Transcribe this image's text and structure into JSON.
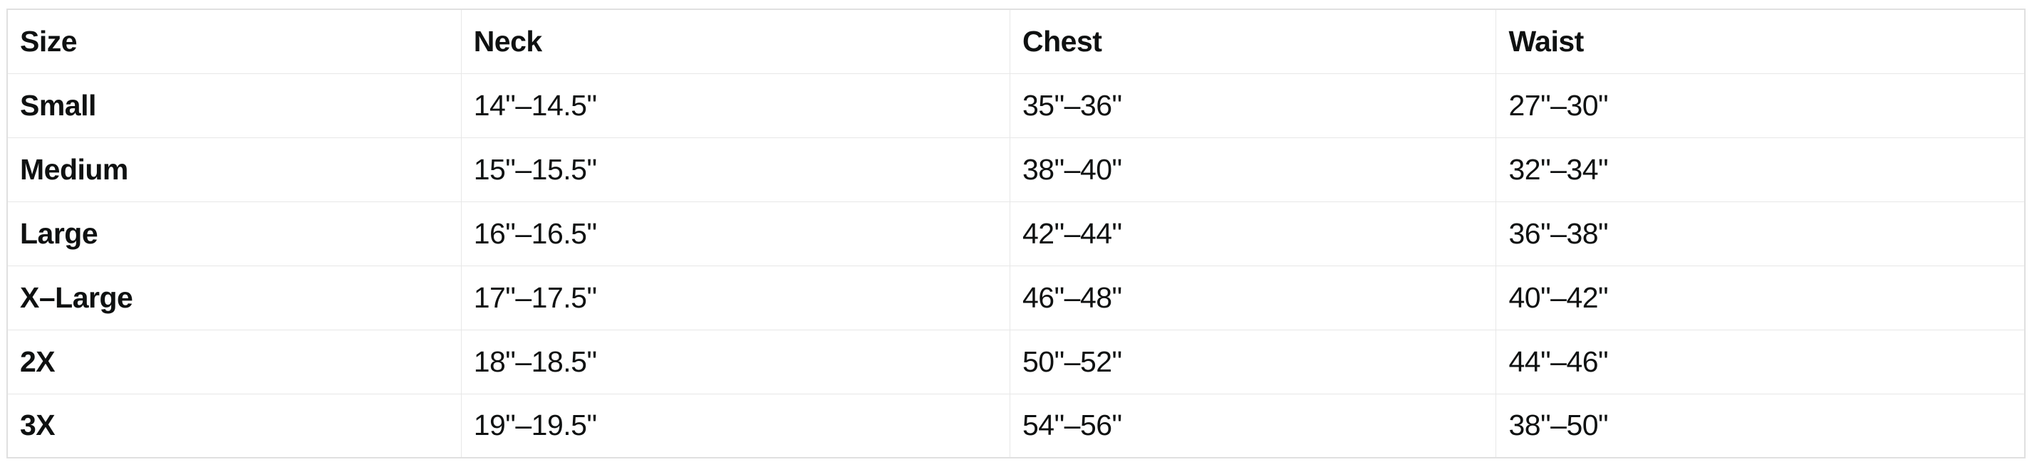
{
  "table": {
    "columns": [
      "Size",
      "Neck",
      "Chest",
      "Waist"
    ],
    "rows": [
      {
        "size": "Small",
        "neck": "14\"–14.5\"",
        "chest": "35\"–36\"",
        "waist": "27\"–30\""
      },
      {
        "size": "Medium",
        "neck": "15\"–15.5\"",
        "chest": "38\"–40\"",
        "waist": "32\"–34\""
      },
      {
        "size": "Large",
        "neck": "16\"–16.5\"",
        "chest": "42\"–44\"",
        "waist": "36\"–38\""
      },
      {
        "size": "X–Large",
        "neck": "17\"–17.5\"",
        "chest": "46\"–48\"",
        "waist": "40\"–42\""
      },
      {
        "size": "2X",
        "neck": "18\"–18.5\"",
        "chest": "50\"–52\"",
        "waist": "44\"–46\""
      },
      {
        "size": "3X",
        "neck": "19\"–19.5\"",
        "chest": "54\"–56\"",
        "waist": "38\"–50\""
      }
    ],
    "colors": {
      "text": "#0f1111",
      "border_outer": "#e0e0e0",
      "border_inner": "#e7e7e7",
      "background": "#ffffff"
    }
  }
}
